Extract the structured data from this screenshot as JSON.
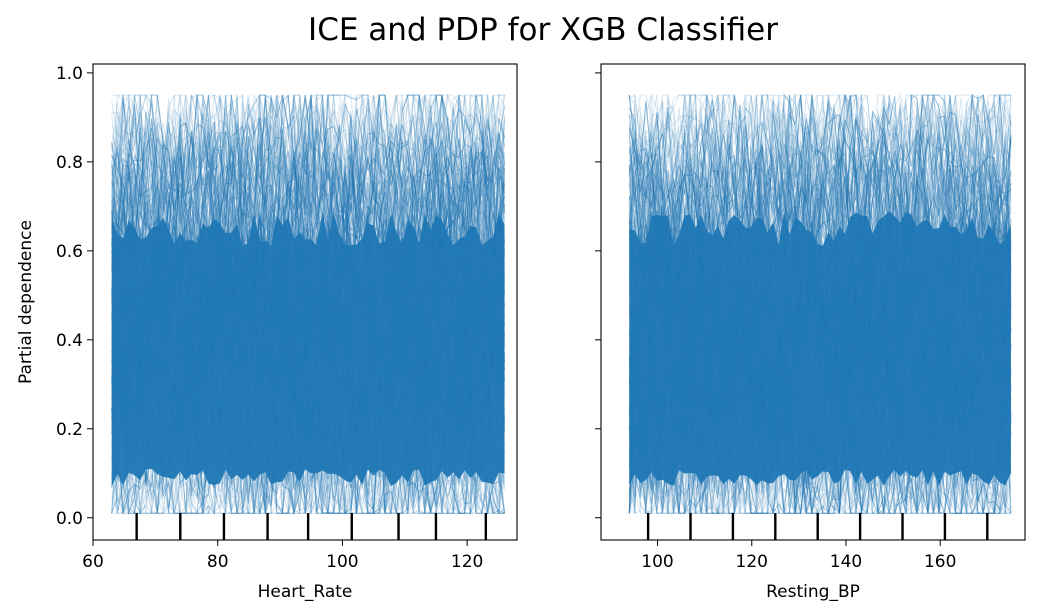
{
  "figure": {
    "title": "ICE and PDP for XGB Classifier"
  },
  "colors": {
    "ice_line": "#1f77b4",
    "axis": "#000000",
    "background": "#ffffff"
  },
  "chart_data": [
    {
      "type": "line",
      "subtype": "ice-pdp",
      "xlabel": "Heart_Rate",
      "ylabel": "Partial dependence",
      "xlim": [
        60,
        128
      ],
      "ylim": [
        -0.05,
        1.02
      ],
      "xticks": [
        60,
        80,
        100,
        120
      ],
      "yticks": [
        0.0,
        0.2,
        0.4,
        0.6,
        0.8,
        1.0
      ],
      "ytick_labels": [
        "0.0",
        "0.2",
        "0.4",
        "0.6",
        "0.8",
        "1.0"
      ],
      "x_range": [
        63,
        126
      ],
      "deciles": [
        67,
        74,
        81,
        88,
        94.5,
        101.5,
        109,
        115,
        123
      ],
      "ice_band": {
        "typical_min": 0.05,
        "typical_max": 0.75,
        "observed_min": 0.01,
        "observed_max": 0.95
      },
      "grid": false
    },
    {
      "type": "line",
      "subtype": "ice-pdp",
      "xlabel": "Resting_BP",
      "ylabel": "",
      "xlim": [
        88,
        178
      ],
      "ylim": [
        -0.05,
        1.02
      ],
      "xticks": [
        100,
        120,
        140,
        160
      ],
      "yticks": [
        0.0,
        0.2,
        0.4,
        0.6,
        0.8,
        1.0
      ],
      "x_range": [
        94,
        175
      ],
      "deciles": [
        98,
        107,
        116,
        125,
        134,
        143,
        152,
        161,
        170
      ],
      "ice_band": {
        "typical_min": 0.05,
        "typical_max": 0.75,
        "observed_min": 0.01,
        "observed_max": 0.95
      },
      "grid": false
    }
  ]
}
